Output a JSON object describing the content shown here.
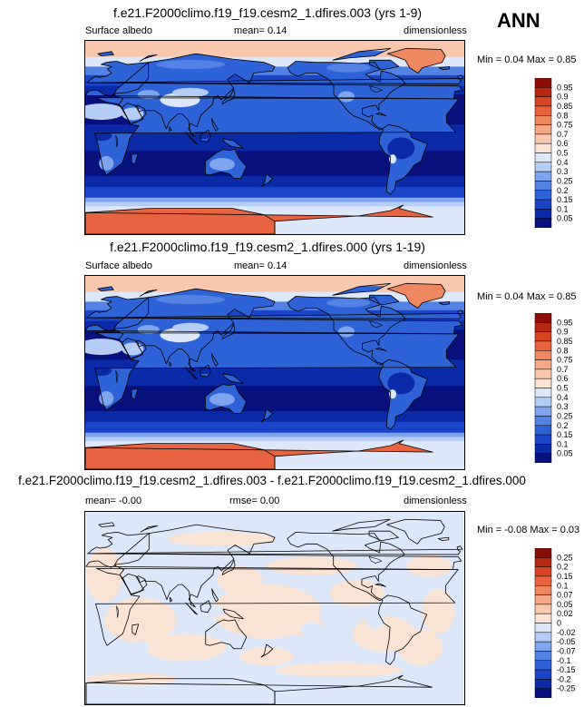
{
  "season": "ANN",
  "palette_abs": [
    "#08107e",
    "#0a2aa8",
    "#1a45c8",
    "#2e63d8",
    "#5283e4",
    "#7ea5ee",
    "#b5ccf5",
    "#dde7fa",
    "#fbe3d4",
    "#f8c7ad",
    "#f4a886",
    "#ef8761",
    "#e8633f",
    "#d84522",
    "#b72810",
    "#8c0d05"
  ],
  "palette_diff": [
    "#08107e",
    "#0a2aa8",
    "#1a45c8",
    "#2e63d8",
    "#5283e4",
    "#7ea5ee",
    "#b5ccf5",
    "#dde7fa",
    "#fbe3d4",
    "#f8c7ad",
    "#f4a886",
    "#ef8761",
    "#e8633f",
    "#d84522",
    "#b72810",
    "#8c0d05"
  ],
  "panels": [
    {
      "title": "f.e21.F2000climo.f19_f19.cesm2_1.dfires.003 (yrs 1-9)",
      "left": "Surface albedo",
      "middle": "mean=  0.14",
      "right": "dimensionless",
      "min_label": "Min =  0.04",
      "max_label": "Max =  0.85",
      "colorbar_labels": [
        "0.95",
        "0.9",
        "0.85",
        "0.8",
        "0.75",
        "0.7",
        "0.6",
        "0.5",
        "0.4",
        "0.3",
        "0.25",
        "0.2",
        "0.15",
        "0.1",
        "0.05"
      ],
      "kind": "abs"
    },
    {
      "title": "f.e21.F2000climo.f19_f19.cesm2_1.dfires.000 (yrs 1-19)",
      "left": "Surface albedo",
      "middle": "mean=  0.14",
      "right": "dimensionless",
      "min_label": "Min =  0.04",
      "max_label": "Max =  0.85",
      "colorbar_labels": [
        "0.95",
        "0.9",
        "0.85",
        "0.8",
        "0.75",
        "0.7",
        "0.6",
        "0.5",
        "0.4",
        "0.3",
        "0.25",
        "0.2",
        "0.15",
        "0.1",
        "0.05"
      ],
      "kind": "abs"
    },
    {
      "title": "f.e21.F2000climo.f19_f19.cesm2_1.dfires.003 - f.e21.F2000climo.f19_f19.cesm2_1.dfires.000",
      "left": "mean= -0.00",
      "middle": "rmse=  0.00",
      "right": "dimensionless",
      "min_label": "Min = -0.08",
      "max_label": "Max =  0.03",
      "colorbar_labels": [
        "0.25",
        "0.2",
        "0.15",
        "0.1",
        "0.07",
        "0.05",
        "0.02",
        "0",
        "-0.02",
        "-0.05",
        "-0.07",
        "-0.1",
        "-0.15",
        "-0.2",
        "-0.25"
      ],
      "kind": "diff"
    }
  ]
}
